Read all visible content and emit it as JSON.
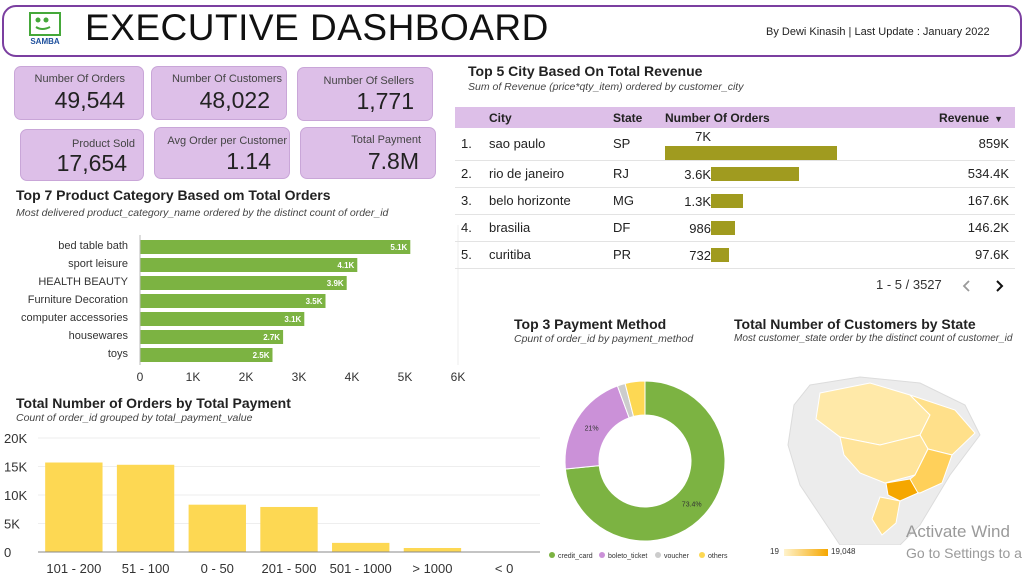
{
  "header": {
    "title": "EXECUTIVE DASHBOARD",
    "byline": "By Dewi Kinasih | Last Update : January 2022",
    "logo_text": "SAMBA"
  },
  "kpis": [
    {
      "label": "Number Of Orders",
      "value": "49,544"
    },
    {
      "label": "Number Of Customers",
      "value": "48,022"
    },
    {
      "label": "Number Of Sellers",
      "value": "1,771"
    },
    {
      "label": "Product Sold",
      "value": "17,654"
    },
    {
      "label": "Avg Order per Customer",
      "value": "1.14"
    },
    {
      "label": "Total Payment",
      "value": "7.8M"
    }
  ],
  "city_table": {
    "title": "Top 5 City Based On Total Revenue",
    "subtitle": "Sum of Revenue (price*qty_item) ordered by customer_city",
    "headers": {
      "city": "City",
      "state": "State",
      "orders": "Number Of Orders",
      "revenue": "Revenue"
    },
    "sort_icon": "caret-down-icon",
    "rows": [
      {
        "rank": "1.",
        "city": "sao paulo",
        "state": "SP",
        "orders_label": "7K",
        "orders": 7000,
        "revenue": "859K"
      },
      {
        "rank": "2.",
        "city": "rio de janeiro",
        "state": "RJ",
        "orders_label": "3.6K",
        "orders": 3600,
        "revenue": "534.4K"
      },
      {
        "rank": "3.",
        "city": "belo horizonte",
        "state": "MG",
        "orders_label": "1.3K",
        "orders": 1300,
        "revenue": "167.6K"
      },
      {
        "rank": "4.",
        "city": "brasilia",
        "state": "DF",
        "orders_label": "986",
        "orders": 986,
        "revenue": "146.2K"
      },
      {
        "rank": "5.",
        "city": "curitiba",
        "state": "PR",
        "orders_label": "732",
        "orders": 732,
        "revenue": "97.6K"
      }
    ],
    "pagination": "1 - 5 / 3527",
    "bar_color": "#a09b1f"
  },
  "colors": {
    "card_bg": "#ddbfe8",
    "green": "#7cb342",
    "yellow": "#fdd853",
    "purple": "#cb91d8",
    "orange": "#f5a700",
    "header_border": "#7b3fa0"
  },
  "chart_data": [
    {
      "type": "bar",
      "orientation": "horizontal",
      "title": "Top 7 Product Category Based om Total Orders",
      "subtitle": "Most delivered product_category_name ordered by the distinct count of order_id",
      "categories": [
        "bed table bath",
        "sport leisure",
        "HEALTH BEAUTY",
        "Furniture Decoration",
        "computer accessories",
        "housewares",
        "toys"
      ],
      "values": [
        5100,
        4100,
        3900,
        3500,
        3100,
        2700,
        2500
      ],
      "labels": [
        "5.1K",
        "4.1K",
        "3.9K",
        "3.5K",
        "3.1K",
        "2.7K",
        "2.5K"
      ],
      "xlim": [
        0,
        6000
      ],
      "xticks": [
        "0",
        "1K",
        "2K",
        "3K",
        "4K",
        "5K",
        "6K"
      ],
      "color": "#7cb342"
    },
    {
      "type": "bar",
      "title": "Total Number of Orders by Total Payment",
      "subtitle": "Count of order_id grouped by total_payment_value",
      "categories": [
        "101 - 200",
        "51 - 100",
        "0 - 50",
        "201 - 500",
        "501 - 1000",
        "> 1000",
        "< 0"
      ],
      "values": [
        15700,
        15300,
        8300,
        7900,
        1600,
        700,
        0
      ],
      "ylim": [
        0,
        20000
      ],
      "yticks": [
        "0",
        "5K",
        "10K",
        "15K",
        "20K"
      ],
      "color": "#fdd853"
    },
    {
      "type": "pie",
      "title": "Top 3 Payment Method",
      "subtitle": "Cpunt of order_id by payment_method",
      "slices": [
        {
          "name": "credit_card",
          "value": 73.4,
          "label": "73.4%",
          "color": "#7cb342"
        },
        {
          "name": "boleto_ticket",
          "value": 21,
          "label": "21%",
          "color": "#cb91d8"
        },
        {
          "name": "voucher",
          "value": 1.6,
          "label": "",
          "color": "#cccccc"
        },
        {
          "name": "others",
          "value": 4,
          "label": "",
          "color": "#fdd853"
        }
      ]
    },
    {
      "type": "map",
      "title": "Total Number of Customers by State",
      "subtitle": "Most customer_state order by the distinct count of customer_id",
      "legend_min": "19",
      "legend_max": "19,048"
    }
  ],
  "watermark": {
    "line1": "Activate Wind",
    "line2": "Go to Settings to a"
  }
}
